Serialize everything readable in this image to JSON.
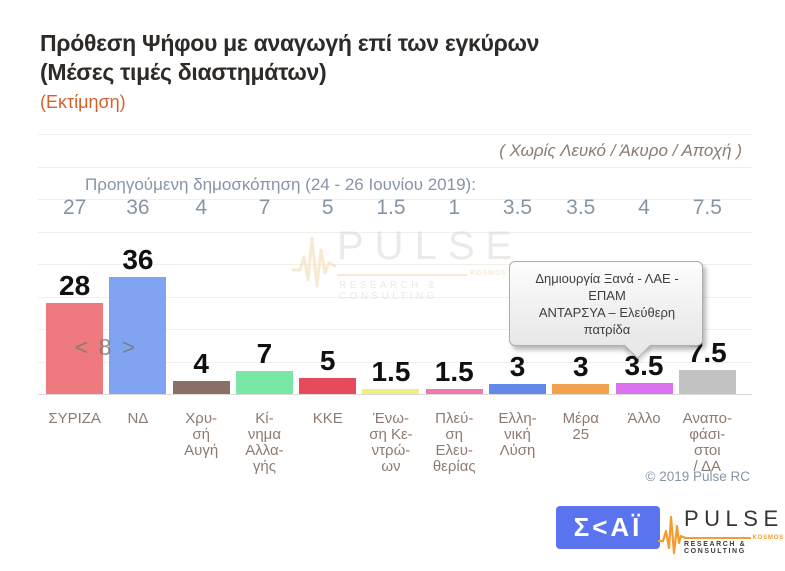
{
  "header": {
    "title_line1": "Πρόθεση Ψήφου με αναγωγή επί των εγκύρων",
    "title_line2": "(Μέσες τιμές διαστημάτων)",
    "subtitle": "(Εκτίμηση)",
    "exclusion_note": "( Χωρίς Λευκό / Άκυρο / Αποχή )"
  },
  "previous_poll": {
    "label": "Προηγούμενη δημοσκόπηση (24 - 26 Ιουνίου 2019):",
    "values": [
      "27",
      "36",
      "4",
      "7",
      "5",
      "1.5",
      "1",
      "3.5",
      "3.5",
      "4",
      "7.5"
    ]
  },
  "chart_data": {
    "type": "bar",
    "title": "Πρόθεση Ψήφου με αναγωγή επί των εγκύρων (Μέσες τιμές διαστημάτων) - Εκτίμηση",
    "categories": [
      "ΣΥΡΙΖΑ",
      "ΝΔ",
      "Χρυσή Αυγή",
      "Κίνημα Αλλαγής",
      "ΚΚΕ",
      "Ένωση Κεντρώων",
      "Πλεύση Ελευθερίας",
      "Ελληνική Λύση",
      "Μέρα 25",
      "Άλλο",
      "Αναποφάσιστοι / ΔΑ"
    ],
    "category_label_lines": [
      [
        "ΣΥΡΙΖΑ"
      ],
      [
        "ΝΔ"
      ],
      [
        "Χρυ-",
        "σή",
        "Αυγή"
      ],
      [
        "Κί-",
        "νημα",
        "Αλλα-",
        "γής"
      ],
      [
        "ΚΚΕ"
      ],
      [
        "Ένω-",
        "ση Κε-",
        "ντρώ-",
        "ων"
      ],
      [
        "Πλεύ-",
        "ση",
        "Ελευ-",
        "θερίας"
      ],
      [
        "Ελλη-",
        "νική",
        "Λύση"
      ],
      [
        "Μέρα",
        "25"
      ],
      [
        "Άλλο"
      ],
      [
        "Αναπο-",
        "φάσι-",
        "στοι",
        "/ ΔΑ"
      ]
    ],
    "values": [
      28,
      36,
      4,
      7,
      5,
      1.5,
      1.5,
      3,
      3,
      3.5,
      7.5
    ],
    "value_labels": [
      "28",
      "36",
      "4",
      "7",
      "5",
      "1.5",
      "1.5",
      "3",
      "3",
      "3.5",
      "7.5"
    ],
    "previous_values": [
      27,
      36,
      4,
      7,
      5,
      1.5,
      1,
      3.5,
      3.5,
      4,
      7.5
    ],
    "bar_colors": [
      "#ee797f",
      "#80a3f2",
      "#8a7168",
      "#79e8a6",
      "#e84a5d",
      "#eef180",
      "#ee7cab",
      "#6289ea",
      "#f2a14e",
      "#da71ee",
      "#c2c2c2"
    ],
    "ylabel": "",
    "xlabel": "",
    "ylim": [
      0,
      80
    ],
    "grid": true,
    "gridline_interval": 10,
    "legend": "none",
    "annotations": {
      "difference_between_first_two_bars": "< 8 >",
      "other_callout_target": "Άλλο"
    }
  },
  "annotations": {
    "gap_label": "< 8 >",
    "tooltip_line1": "Δημιουργία Ξανά - ΛΑΕ - ΕΠΑΜ",
    "tooltip_line2": "ΑΝΤΑΡΣΥΑ – Ελεύθερη πατρίδα"
  },
  "watermark": {
    "text": "PULSE",
    "subtext": "RESEARCH & CONSULTING",
    "smalltext": "KOSMOS"
  },
  "footer": {
    "copyright": "© 2019 Pulse RC",
    "skai_logo_text": "Σ<ΑΪ",
    "pulse_logo_text": "PULSE",
    "pulse_logo_subtext": "RESEARCH & CONSULTING",
    "pulse_logo_smalltext": "KOSMOS"
  },
  "colors": {
    "title": "#2d2a27",
    "subtitle_accent": "#d2622c",
    "note_text": "#8b7c72",
    "previous_poll_text": "#8695a6",
    "category_label_text": "#8d7b70",
    "skai_blue": "#5a74f0",
    "pulse_orange": "#f59c30",
    "gridline": "#f1efec"
  }
}
